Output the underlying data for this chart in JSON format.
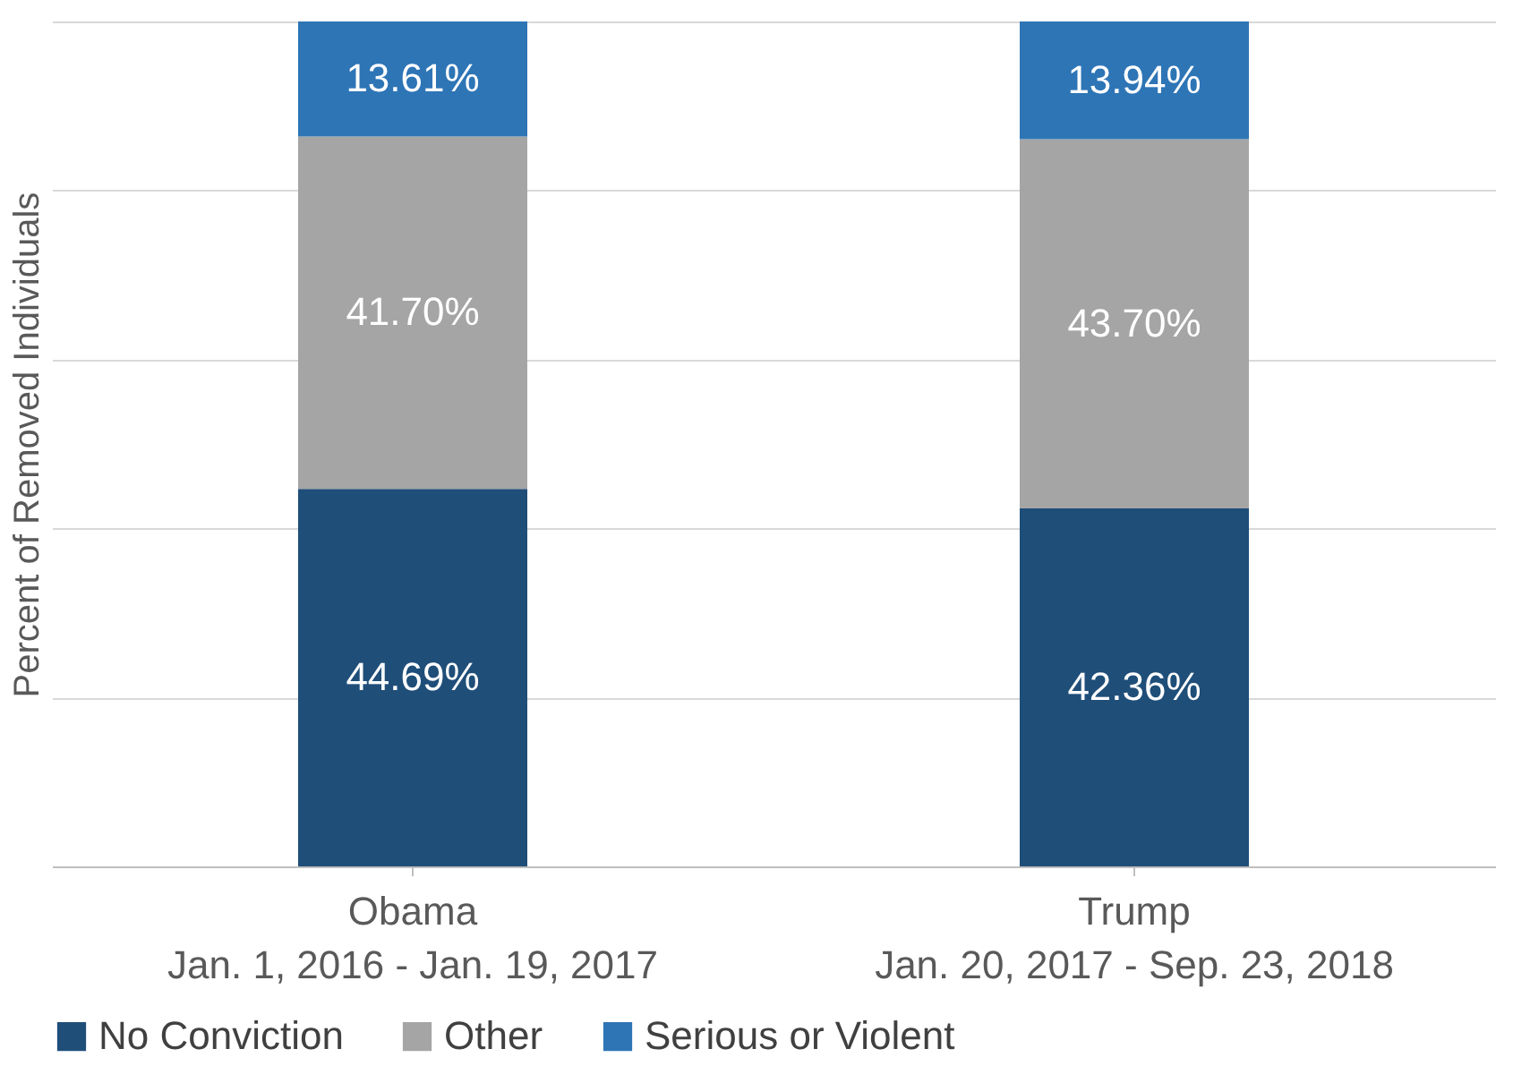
{
  "chart_data": {
    "type": "bar",
    "stacked": true,
    "ylabel": "Percent of Removed Individuals",
    "categories": [
      "Obama\nJan. 1, 2016 - Jan. 19, 2017",
      "Trump\nJan. 20, 2017 - Sep. 23, 2018"
    ],
    "series": [
      {
        "name": "No Conviction",
        "color": "#1f4e79",
        "values": [
          44.69,
          42.36
        ],
        "value_labels": [
          "44.69%",
          "42.36%"
        ]
      },
      {
        "name": "Other",
        "color": "#a5a5a5",
        "values": [
          41.7,
          43.7
        ],
        "value_labels": [
          "41.70%",
          "43.70%"
        ]
      },
      {
        "name": "Serious or Violent",
        "color": "#2e75b6",
        "values": [
          13.61,
          13.94
        ],
        "value_labels": [
          "13.61%",
          "13.94%"
        ]
      }
    ],
    "ylim": [
      0,
      100
    ],
    "yticks": [
      {
        "value": 0,
        "label": null
      },
      {
        "value": 20,
        "label": null
      },
      {
        "value": 40,
        "label": null
      },
      {
        "value": 60,
        "label": null
      },
      {
        "value": 80,
        "label": null
      },
      {
        "value": 100,
        "label": null
      }
    ],
    "tick_labels": "x",
    "grid": "y",
    "legend": "bottom"
  }
}
